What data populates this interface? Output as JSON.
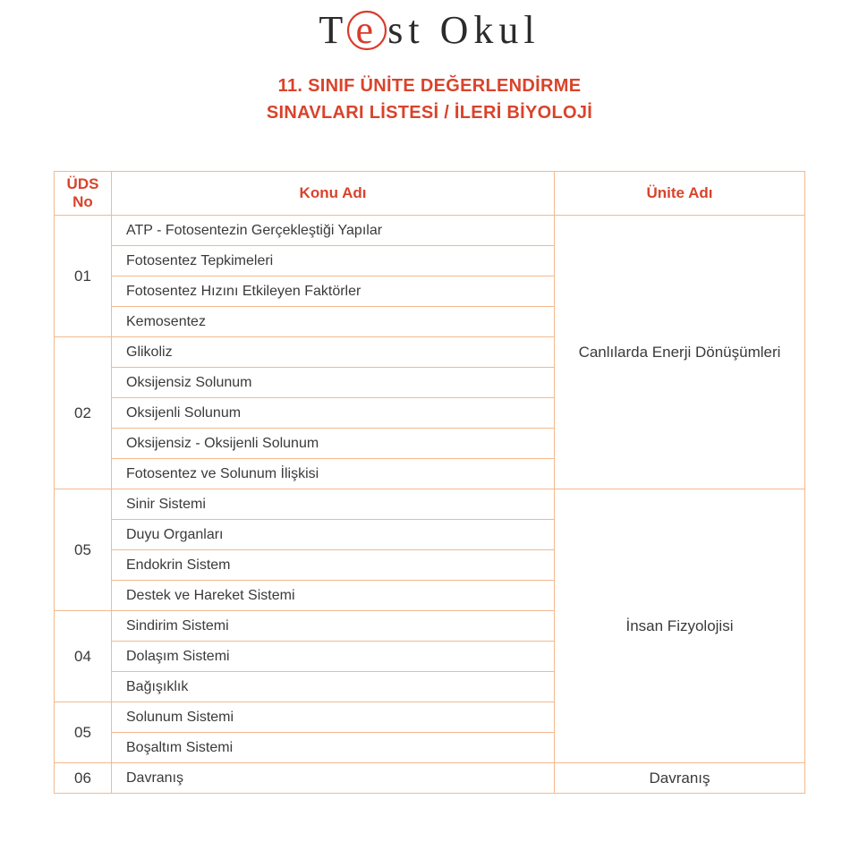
{
  "logo": {
    "letters_before": "T",
    "e": "e",
    "letters_after": "st Okul",
    "circle_color": "#d93b2b",
    "text_color": "#2b2b2b"
  },
  "subtitle": {
    "line1": "11. SINIF  ÜNİTE DEĞERLENDİRME",
    "line2": "SINAVLARI LİSTESİ / İLERİ BİYOLOJİ",
    "color": "#d9432b"
  },
  "headers": {
    "no": "ÜDS\nNo",
    "konu": "Konu Adı",
    "unite": "Ünite Adı",
    "color": "#d9432b"
  },
  "border_color": "#f3b98e",
  "groups": [
    {
      "unit": "Canlılarda Enerji Dönüşümleri",
      "rows": [
        {
          "no": "01",
          "topics": [
            "ATP - Fotosentezin Gerçekleştiği Yapılar",
            "Fotosentez Tepkimeleri",
            "Fotosentez Hızını Etkileyen Faktörler",
            "Kemosentez"
          ]
        },
        {
          "no": "02",
          "topics": [
            "Glikoliz",
            "Oksijensiz Solunum",
            "Oksijenli Solunum",
            "Oksijensiz - Oksijenli Solunum",
            "Fotosentez ve Solunum İlişkisi"
          ]
        }
      ]
    },
    {
      "unit": "İnsan Fizyolojisi",
      "rows": [
        {
          "no": "05",
          "topics": [
            "Sinir Sistemi",
            "Duyu Organları",
            "Endokrin Sistem",
            "Destek ve Hareket Sistemi"
          ]
        },
        {
          "no": "04",
          "topics": [
            "Sindirim Sistemi",
            "Dolaşım Sistemi",
            "Bağışıklık"
          ]
        },
        {
          "no": "05",
          "topics": [
            "Solunum Sistemi",
            "Boşaltım Sistemi"
          ]
        }
      ]
    },
    {
      "unit": "Davranış",
      "rows": [
        {
          "no": "06",
          "topics": [
            "Davranış"
          ]
        }
      ]
    }
  ]
}
